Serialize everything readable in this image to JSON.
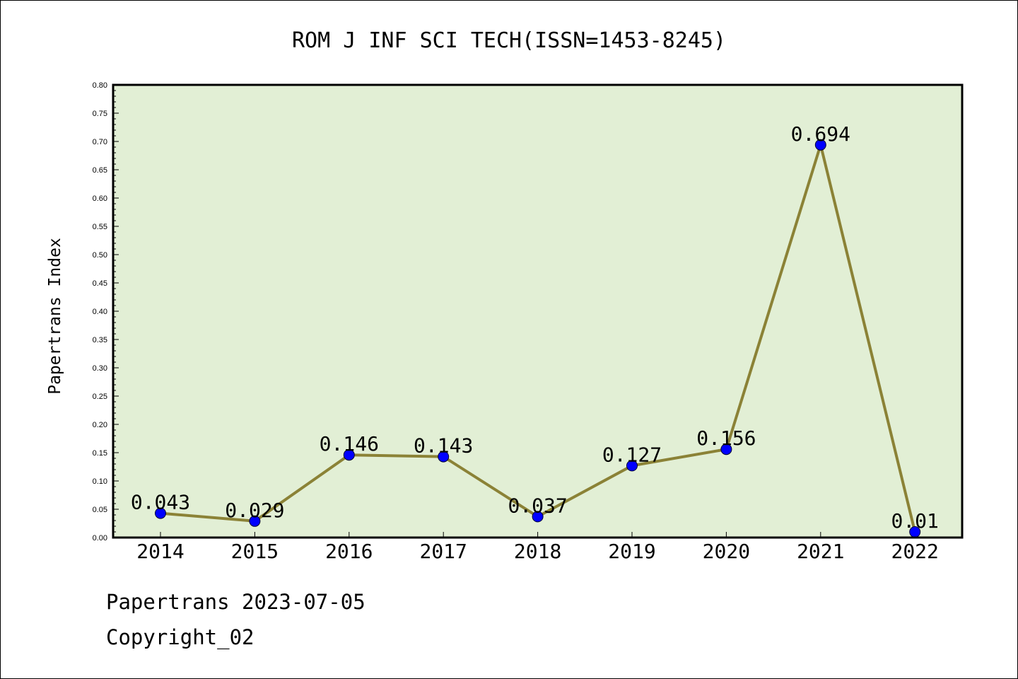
{
  "chart_data": {
    "type": "line",
    "title": "ROM J INF SCI TECH(ISSN=1453-8245)",
    "xlabel": "",
    "ylabel": "Papertrans Index",
    "categories": [
      "2014",
      "2015",
      "2016",
      "2017",
      "2018",
      "2019",
      "2020",
      "2021",
      "2022"
    ],
    "series": [
      {
        "values": [
          0.043,
          0.029,
          0.146,
          0.143,
          0.037,
          0.127,
          0.156,
          0.694,
          0.01
        ],
        "labels": [
          "0.043",
          "0.029",
          "0.146",
          "0.143",
          "0.037",
          "0.127",
          "0.156",
          "0.694",
          "0.01"
        ]
      }
    ],
    "ylim": [
      0,
      0.8
    ],
    "yticks": [
      "0.00",
      "0.05",
      "0.10",
      "0.15",
      "0.20",
      "0.25",
      "0.30",
      "0.35",
      "0.40",
      "0.45",
      "0.50",
      "0.55",
      "0.60",
      "0.65",
      "0.70",
      "0.75",
      "0.80"
    ],
    "grid": false,
    "legend": "none",
    "colors": {
      "plot_background": "#e2efd5",
      "line": "#8b8236",
      "marker": "#0000ff",
      "axes": "#000000"
    }
  },
  "footer": {
    "date_line": "Papertrans 2023-07-05",
    "copyright_line": "Copyright_02"
  }
}
